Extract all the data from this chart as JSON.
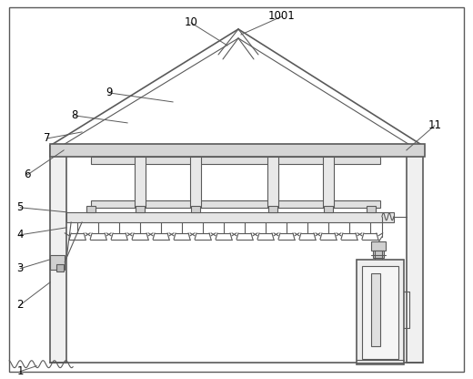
{
  "bg_color": "#ffffff",
  "lc": "#5a5a5a",
  "lw": 0.8,
  "lwt": 1.2,
  "fig_width": 5.2,
  "fig_height": 4.16,
  "dpi": 100
}
